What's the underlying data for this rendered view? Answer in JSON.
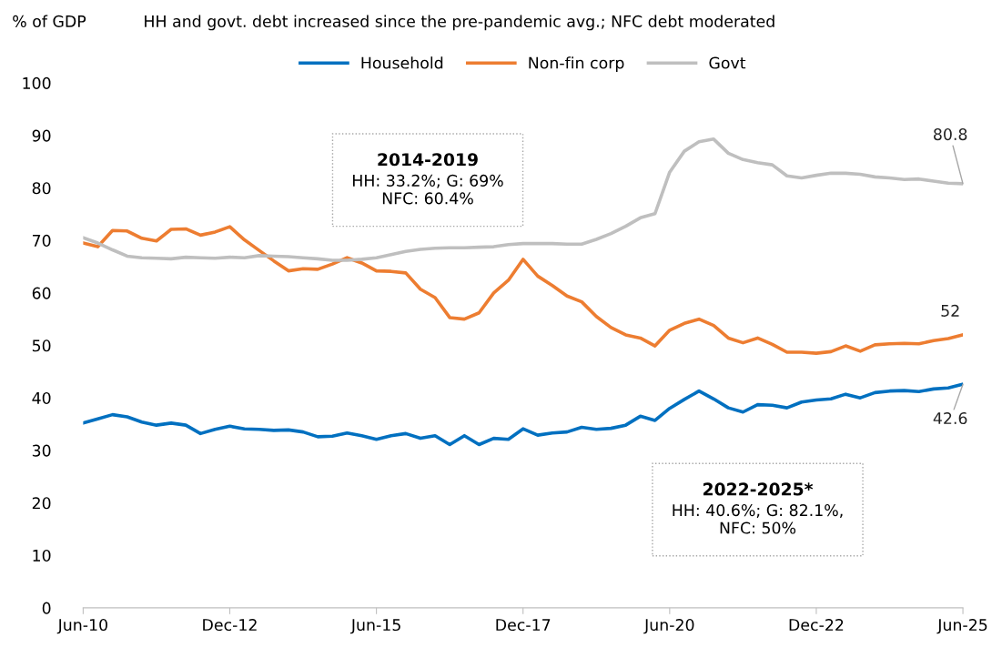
{
  "chart_data": {
    "type": "line",
    "title": "HH and govt. debt increased since the pre-pandemic avg.; NFC debt moderated",
    "ylabel": "% of GDP",
    "categories": [
      "Jun-10",
      null,
      null,
      null,
      null,
      null,
      null,
      null,
      null,
      null,
      "Dec-12",
      null,
      null,
      null,
      null,
      null,
      null,
      null,
      null,
      null,
      "Jun-15",
      null,
      null,
      null,
      null,
      null,
      null,
      null,
      null,
      null,
      "Dec-17",
      null,
      null,
      null,
      null,
      null,
      null,
      null,
      null,
      null,
      "Jun-20",
      null,
      null,
      null,
      null,
      null,
      null,
      null,
      null,
      null,
      "Dec-22",
      null,
      null,
      null,
      null,
      null,
      null,
      null,
      null,
      null,
      "Jun-25"
    ],
    "series": [
      {
        "name": "Household",
        "color": "#0070c0",
        "values": [
          35.2,
          36.0,
          36.8,
          36.4,
          35.4,
          34.8,
          35.2,
          34.8,
          33.2,
          34.0,
          34.6,
          34.1,
          34.0,
          33.8,
          33.9,
          33.5,
          32.6,
          32.7,
          33.3,
          32.8,
          32.1,
          32.8,
          33.2,
          32.3,
          32.8,
          31.1,
          32.8,
          31.1,
          32.3,
          32.1,
          34.1,
          32.9,
          33.3,
          33.5,
          34.4,
          34.0,
          34.2,
          34.8,
          36.5,
          35.7,
          38.0,
          39.7,
          41.3,
          39.8,
          38.1,
          37.3,
          38.7,
          38.6,
          38.1,
          39.2,
          39.6,
          39.8,
          40.7,
          40.0,
          41.0,
          41.3,
          41.4,
          41.2,
          41.7,
          41.9,
          42.6
        ],
        "value_labels": [
          null,
          null,
          null,
          null,
          null,
          null,
          null,
          null,
          null,
          null,
          null,
          null,
          null,
          null,
          null,
          null,
          null,
          null,
          null,
          null,
          null,
          null,
          null,
          null,
          null,
          null,
          null,
          null,
          null,
          null,
          null,
          null,
          null,
          null,
          null,
          null,
          null,
          null,
          null,
          null,
          null,
          null,
          null,
          null,
          null,
          null,
          null,
          null,
          null,
          null,
          null,
          null,
          null,
          null,
          null,
          null,
          null,
          null,
          null,
          null,
          "42.6"
        ]
      },
      {
        "name": "Non-fin corp",
        "color": "#ed7d31",
        "values": [
          69.5,
          68.8,
          71.9,
          71.8,
          70.4,
          69.9,
          72.1,
          72.2,
          71.0,
          71.6,
          72.6,
          70.1,
          68.1,
          66.1,
          64.2,
          64.6,
          64.5,
          65.5,
          66.7,
          65.7,
          64.2,
          64.1,
          63.8,
          60.7,
          59.1,
          55.3,
          55.0,
          56.2,
          60.0,
          62.4,
          66.4,
          63.2,
          61.4,
          59.4,
          58.3,
          55.5,
          53.4,
          52.0,
          51.4,
          49.9,
          52.9,
          54.2,
          55.0,
          53.8,
          51.4,
          50.5,
          51.4,
          50.2,
          48.7,
          48.7,
          48.5,
          48.8,
          49.9,
          48.9,
          50.1,
          50.3,
          50.4,
          50.3,
          50.9,
          51.3,
          52.0
        ],
        "value_labels": [
          null,
          null,
          null,
          null,
          null,
          null,
          null,
          null,
          null,
          null,
          null,
          null,
          null,
          null,
          null,
          null,
          null,
          null,
          null,
          null,
          null,
          null,
          null,
          null,
          null,
          null,
          null,
          null,
          null,
          null,
          null,
          null,
          null,
          null,
          null,
          null,
          null,
          null,
          null,
          null,
          null,
          null,
          null,
          null,
          null,
          null,
          null,
          null,
          null,
          null,
          null,
          null,
          null,
          null,
          null,
          null,
          null,
          null,
          null,
          null,
          "52"
        ]
      },
      {
        "name": "Govt",
        "color": "#bfbfbf",
        "values": [
          70.5,
          69.5,
          68.2,
          67.0,
          66.7,
          66.6,
          66.5,
          66.8,
          66.7,
          66.6,
          66.8,
          66.7,
          67.1,
          67.0,
          66.9,
          66.7,
          66.5,
          66.2,
          66.2,
          66.4,
          66.7,
          67.3,
          67.9,
          68.3,
          68.5,
          68.6,
          68.6,
          68.7,
          68.8,
          69.2,
          69.4,
          69.4,
          69.4,
          69.3,
          69.3,
          70.2,
          71.3,
          72.7,
          74.3,
          75.1,
          83.0,
          87.0,
          88.8,
          89.3,
          86.6,
          85.4,
          84.8,
          84.4,
          82.3,
          81.9,
          82.4,
          82.8,
          82.8,
          82.6,
          82.1,
          81.9,
          81.6,
          81.7,
          81.3,
          80.9,
          80.8
        ],
        "value_labels": [
          null,
          null,
          null,
          null,
          null,
          null,
          null,
          null,
          null,
          null,
          null,
          null,
          null,
          null,
          null,
          null,
          null,
          null,
          null,
          null,
          null,
          null,
          null,
          null,
          null,
          null,
          null,
          null,
          null,
          null,
          null,
          null,
          null,
          null,
          null,
          null,
          null,
          null,
          null,
          null,
          null,
          null,
          null,
          null,
          null,
          null,
          null,
          null,
          null,
          null,
          null,
          null,
          null,
          null,
          null,
          null,
          null,
          null,
          null,
          null,
          "80.8"
        ]
      }
    ],
    "ylim": [
      0,
      100
    ],
    "yticks": [
      0,
      10,
      20,
      30,
      40,
      50,
      60,
      70,
      80,
      90,
      100
    ],
    "annotations": [
      "2014-2019",
      "HH: 33.2%; G: 69%\nNFC: 60.4%",
      "2022-2025*",
      "HH: 40.6%; G: 82.1%,\nNFC: 50%"
    ],
    "legend": "top",
    "grid": false,
    "marker": "none",
    "line_style": "solid"
  }
}
